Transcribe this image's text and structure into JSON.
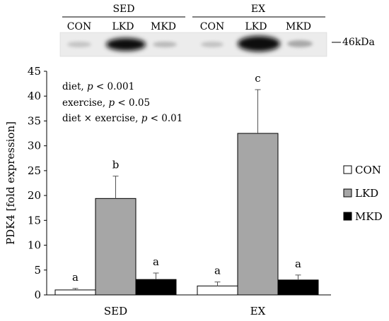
{
  "blot": {
    "groups": [
      "SED",
      "EX"
    ],
    "lanes": [
      "CON",
      "LKD",
      "MKD"
    ],
    "marker": "46kDa"
  },
  "stats": {
    "lines": [
      {
        "term": "diet",
        "sep": ", ",
        "p": "p",
        "rel": " < 0.001"
      },
      {
        "term": "exercise",
        "sep": ", ",
        "p": "p",
        "rel": " < 0.05"
      },
      {
        "term": "diet × exercise",
        "sep": ", ",
        "p": "p",
        "rel": " < 0.01"
      }
    ]
  },
  "chart_data": {
    "type": "bar",
    "categories": [
      "SED",
      "EX"
    ],
    "ylabel": "PDK4 [fold expression]",
    "xlabel": "",
    "ylim": [
      0,
      45
    ],
    "yticks": [
      0,
      5,
      10,
      15,
      20,
      25,
      30,
      35,
      40,
      45
    ],
    "series": [
      {
        "name": "CON",
        "color": "#ffffff",
        "values": [
          1.0,
          1.8
        ],
        "errors": [
          0.3,
          0.8
        ],
        "letters": [
          "a",
          "a"
        ]
      },
      {
        "name": "LKD",
        "color": "#a6a6a6",
        "values": [
          19.4,
          32.5
        ],
        "errors": [
          4.5,
          8.8
        ],
        "letters": [
          "b",
          "c"
        ]
      },
      {
        "name": "MKD",
        "color": "#000000",
        "values": [
          3.1,
          3.0
        ],
        "errors": [
          1.3,
          1.0
        ],
        "letters": [
          "a",
          "a"
        ]
      }
    ],
    "legend_position": "right",
    "grid": false
  }
}
